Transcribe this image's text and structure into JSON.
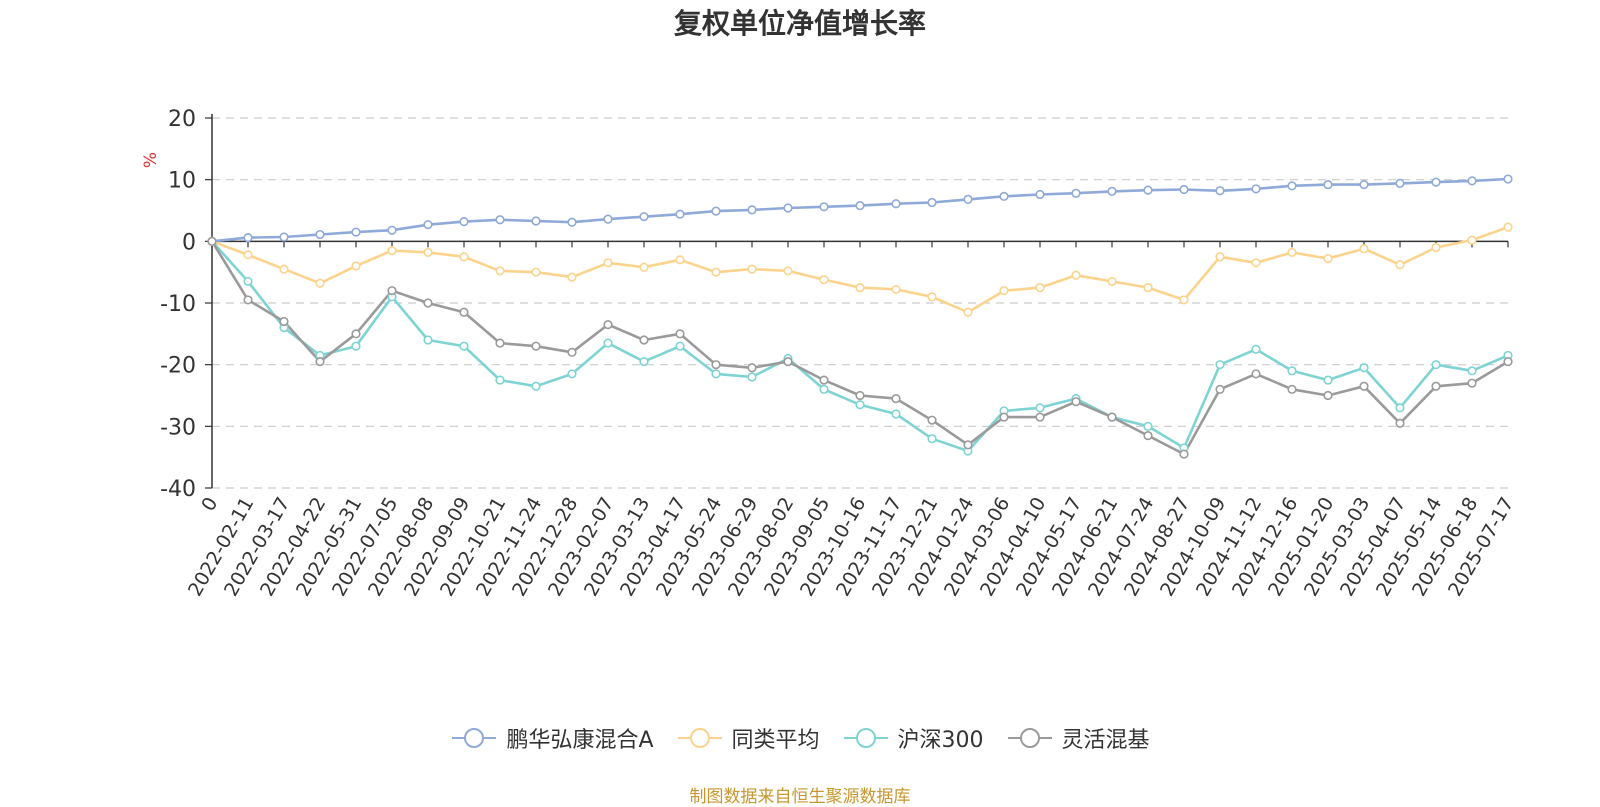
{
  "chart_data": {
    "type": "line",
    "title": "复权单位净值增长率",
    "ylabel": "%",
    "ylim": [
      -40,
      20
    ],
    "yticks": [
      "20",
      "10",
      "0",
      "-10",
      "-20",
      "-30",
      "-40"
    ],
    "grid": true,
    "legend_position": "bottom",
    "x_labels": [
      "0",
      "2022-02-11",
      "2022-03-17",
      "2022-04-22",
      "2022-05-31",
      "2022-07-05",
      "2022-08-08",
      "2022-09-09",
      "2022-10-21",
      "2022-11-24",
      "2022-12-28",
      "2023-02-07",
      "2023-03-13",
      "2023-04-17",
      "2023-05-24",
      "2023-06-29",
      "2023-08-02",
      "2023-09-05",
      "2023-10-16",
      "2023-11-17",
      "2023-12-21",
      "2024-01-24",
      "2024-03-06",
      "2024-04-10",
      "2024-05-17",
      "2024-06-21",
      "2024-07-24",
      "2024-08-27",
      "2024-10-09",
      "2024-11-12",
      "2024-12-16",
      "2025-01-20",
      "2025-03-03",
      "2025-04-07",
      "2025-05-14",
      "2025-06-18",
      "2025-07-17"
    ],
    "series": [
      {
        "name": "鹏华弘康混合A",
        "color": "#8fa9d9",
        "values": [
          0,
          0.6,
          0.7,
          1.1,
          1.5,
          1.8,
          2.7,
          3.2,
          3.5,
          3.3,
          3.1,
          3.6,
          4.0,
          4.4,
          4.9,
          5.1,
          5.4,
          5.6,
          5.8,
          6.1,
          6.3,
          6.8,
          7.3,
          7.6,
          7.8,
          8.1,
          8.3,
          8.4,
          8.2,
          8.5,
          9.0,
          9.2,
          9.2,
          9.4,
          9.6,
          9.8,
          10.1
        ]
      },
      {
        "name": "同类平均",
        "color": "#fbd38c",
        "values": [
          0,
          -2.2,
          -4.5,
          -6.8,
          -4.0,
          -1.5,
          -1.8,
          -2.5,
          -4.8,
          -5.0,
          -5.8,
          -3.5,
          -4.2,
          -3.0,
          -5.0,
          -4.5,
          -4.8,
          -6.2,
          -7.5,
          -7.8,
          -9.0,
          -11.5,
          -8.0,
          -7.5,
          -5.5,
          -6.5,
          -7.5,
          -9.5,
          -2.5,
          -3.5,
          -1.8,
          -2.8,
          -1.2,
          -3.8,
          -1.0,
          0.2,
          2.3
        ]
      },
      {
        "name": "沪深300",
        "color": "#7ed3d3",
        "values": [
          0,
          -6.5,
          -14.0,
          -18.5,
          -17.0,
          -9.0,
          -16.0,
          -17.0,
          -22.5,
          -23.5,
          -21.5,
          -16.5,
          -19.5,
          -17.0,
          -21.5,
          -22.0,
          -19.0,
          -24.0,
          -26.5,
          -28.0,
          -32.0,
          -34.0,
          -27.5,
          -27.0,
          -25.5,
          -28.5,
          -30.0,
          -33.5,
          -20.0,
          -17.5,
          -21.0,
          -22.5,
          -20.5,
          -27.0,
          -20.0,
          -21.0,
          -18.5
        ]
      },
      {
        "name": "灵活混基",
        "color": "#9a9a9a",
        "values": [
          0,
          -9.5,
          -13.0,
          -19.5,
          -15.0,
          -8.0,
          -10.0,
          -11.5,
          -16.5,
          -17.0,
          -18.0,
          -13.5,
          -16.0,
          -15.0,
          -20.0,
          -20.5,
          -19.5,
          -22.5,
          -25.0,
          -25.5,
          -29.0,
          -33.0,
          -28.5,
          -28.5,
          -26.0,
          -28.5,
          -31.5,
          -34.5,
          -24.0,
          -21.5,
          -24.0,
          -25.0,
          -23.5,
          -29.5,
          -23.5,
          -23.0,
          -19.5
        ]
      }
    ]
  },
  "source_text": "制图数据来自恒生聚源数据库"
}
